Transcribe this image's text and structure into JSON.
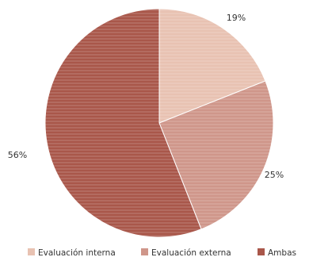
{
  "chart_data": {
    "type": "pie",
    "title": "",
    "slices": [
      {
        "label": "Evaluación interna",
        "value": 19,
        "display": "19%",
        "color": "#e8c2b2"
      },
      {
        "label": "Evaluación externa",
        "value": 25,
        "display": "25%",
        "color": "#cf968a"
      },
      {
        "label": "Ambas",
        "value": 56,
        "display": "56%",
        "color": "#a9574a"
      }
    ],
    "legend_position": "bottom",
    "legend_visible_text": [
      "Evaluación interna",
      "Evaluación externa",
      "Ambas"
    ]
  }
}
